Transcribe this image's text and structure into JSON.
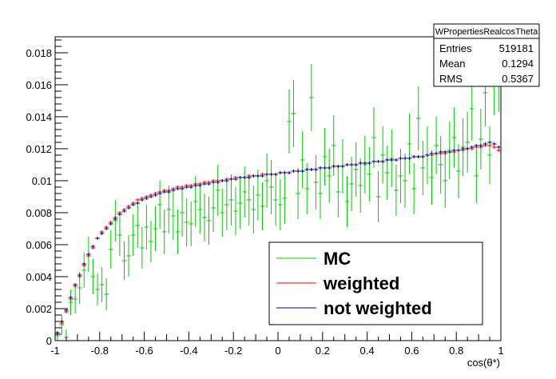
{
  "chart_data": {
    "type": "scatter",
    "title": "",
    "xlabel": "cos(θ*)",
    "ylabel": "",
    "xlim": [
      -1,
      1
    ],
    "ylim": [
      0,
      0.019
    ],
    "grid": false,
    "x_ticks": [
      "-1",
      "-0.8",
      "-0.6",
      "-0.4",
      "-0.2",
      "0",
      "0.2",
      "0.4",
      "0.6",
      "0.8",
      "1"
    ],
    "x_tick_values": [
      -1,
      -0.8,
      -0.6,
      -0.4,
      -0.2,
      0,
      0.2,
      0.4,
      0.6,
      0.8,
      1
    ],
    "y_ticks": [
      "0",
      "0.002",
      "0.004",
      "0.006",
      "0.008",
      "0.01",
      "0.012",
      "0.014",
      "0.016",
      "0.018"
    ],
    "y_tick_values": [
      0,
      0.002,
      0.004,
      0.006,
      0.008,
      0.01,
      0.012,
      0.014,
      0.016,
      0.018
    ],
    "legend_placement": "bottom-right",
    "bins": {
      "n": 100,
      "low": -1,
      "high": 1
    },
    "series": [
      {
        "name": "MC",
        "color": "#00cc00",
        "values": [
          0.0003,
          0.001,
          0.0002,
          0.0024,
          0.0026,
          0.0033,
          0.0044,
          0.0054,
          0.004,
          0.0032,
          0.0035,
          0.0029,
          0.0057,
          0.0075,
          0.0066,
          0.005,
          0.0053,
          0.0066,
          0.0072,
          0.0058,
          0.0071,
          0.0062,
          0.007,
          0.0085,
          0.0068,
          0.0082,
          0.0078,
          0.0068,
          0.008,
          0.0074,
          0.0073,
          0.0087,
          0.0082,
          0.0077,
          0.0075,
          0.0083,
          0.0094,
          0.008,
          0.0085,
          0.0088,
          0.0081,
          0.0086,
          0.0093,
          0.0088,
          0.0082,
          0.0091,
          0.0084,
          0.01,
          0.0096,
          0.0088,
          0.0085,
          0.0089,
          0.0137,
          0.0142,
          0.0092,
          0.0113,
          0.0095,
          0.0152,
          0.0099,
          0.0092,
          0.0115,
          0.0103,
          0.0122,
          0.0093,
          0.0109,
          0.0087,
          0.0098,
          0.0107,
          0.0097,
          0.011,
          0.0104,
          0.0127,
          0.009,
          0.0116,
          0.0105,
          0.0114,
          0.0094,
          0.0103,
          0.01,
          0.0123,
          0.0095,
          0.0139,
          0.0108,
          0.0116,
          0.0102,
          0.0122,
          0.011,
          0.01,
          0.0119,
          0.0127,
          0.0106,
          0.0121,
          0.0124,
          0.0145,
          0.0103,
          0.0126,
          0.0155,
          0.0116,
          0.0162,
          0.0165
        ],
        "errors": [
          0.0003,
          0.0006,
          0.0005,
          0.0008,
          0.0009,
          0.001,
          0.0011,
          0.0011,
          0.0011,
          0.001,
          0.0011,
          0.001,
          0.0012,
          0.0013,
          0.0013,
          0.0012,
          0.0013,
          0.0013,
          0.0014,
          0.0013,
          0.0014,
          0.0013,
          0.0014,
          0.0015,
          0.0014,
          0.0015,
          0.0015,
          0.0014,
          0.0015,
          0.0015,
          0.0014,
          0.0016,
          0.0015,
          0.0015,
          0.0015,
          0.0015,
          0.0016,
          0.0015,
          0.0016,
          0.0016,
          0.0015,
          0.0016,
          0.0016,
          0.0016,
          0.0015,
          0.0016,
          0.0015,
          0.0017,
          0.0017,
          0.0016,
          0.0016,
          0.0016,
          0.002,
          0.0021,
          0.0016,
          0.0018,
          0.0016,
          0.0021,
          0.0017,
          0.0016,
          0.0018,
          0.0017,
          0.0019,
          0.0016,
          0.0017,
          0.0016,
          0.0017,
          0.0017,
          0.0017,
          0.0018,
          0.0017,
          0.0019,
          0.0016,
          0.0018,
          0.0017,
          0.0018,
          0.0016,
          0.0017,
          0.0017,
          0.0019,
          0.0016,
          0.002,
          0.0017,
          0.0018,
          0.0017,
          0.0018,
          0.0018,
          0.0017,
          0.0018,
          0.0019,
          0.0017,
          0.0018,
          0.0019,
          0.002,
          0.0017,
          0.0019,
          0.0021,
          0.0018,
          0.0021,
          0.0022
        ]
      },
      {
        "name": "weighted",
        "color": "#ff0000",
        "values": [
          0.0004,
          0.0011,
          0.0018,
          0.0026,
          0.0034,
          0.004,
          0.0047,
          0.0053,
          0.0058,
          0.0064,
          0.0068,
          0.0071,
          0.0074,
          0.0077,
          0.008,
          0.0082,
          0.0084,
          0.0086,
          0.0088,
          0.0089,
          0.009,
          0.0091,
          0.0092,
          0.0093,
          0.0094,
          0.0094,
          0.0095,
          0.0096,
          0.0096,
          0.0097,
          0.0097,
          0.0098,
          0.0098,
          0.0099,
          0.0099,
          0.01,
          0.01,
          0.01,
          0.0101,
          0.0101,
          0.0102,
          0.0102,
          0.0102,
          0.0103,
          0.0103,
          0.0103,
          0.0104,
          0.0104,
          0.0104,
          0.0104,
          0.0105,
          0.0105,
          0.0105,
          0.0106,
          0.0106,
          0.0106,
          0.0107,
          0.0107,
          0.0107,
          0.0108,
          0.0108,
          0.0108,
          0.0109,
          0.0109,
          0.0109,
          0.011,
          0.011,
          0.011,
          0.0111,
          0.0111,
          0.0111,
          0.0112,
          0.0112,
          0.0112,
          0.0113,
          0.0113,
          0.0113,
          0.0114,
          0.0114,
          0.0114,
          0.0115,
          0.0115,
          0.0115,
          0.0116,
          0.0116,
          0.0117,
          0.0117,
          0.0117,
          0.0118,
          0.0118,
          0.0119,
          0.0119,
          0.012,
          0.012,
          0.0121,
          0.0121,
          0.0122,
          0.0122,
          0.0121,
          0.0119
        ],
        "errors": [
          8e-05,
          0.0001,
          0.0001,
          0.0001,
          0.0001,
          0.0001,
          0.0001,
          0.0001,
          0.0001,
          0.0001,
          0.0001,
          0.0001,
          0.0001,
          0.0001,
          0.0001,
          0.0001,
          0.0001,
          0.0001,
          0.0001,
          0.0001,
          0.0001,
          0.0001,
          0.0001,
          0.0001,
          0.0001,
          0.0001,
          0.0001,
          0.0001,
          0.0001,
          0.0001,
          0.0001,
          0.0001,
          0.0001,
          0.0001,
          0.0001,
          0.0001,
          0.0001,
          0.0001,
          0.0001,
          0.0001,
          0.0001,
          0.0001,
          0.0001,
          0.0001,
          0.0001,
          0.0001,
          0.0001,
          0.0001,
          0.0001,
          0.0001,
          0.0001,
          0.0001,
          0.0001,
          0.0001,
          0.0001,
          0.0001,
          0.0001,
          0.0001,
          0.0001,
          0.0001,
          0.0001,
          0.0001,
          0.0001,
          0.0001,
          0.0001,
          0.0001,
          0.0001,
          0.0001,
          0.0001,
          0.0001,
          0.0001,
          0.0001,
          0.0001,
          0.0001,
          0.0001,
          0.0001,
          0.0001,
          0.0001,
          0.0001,
          0.0001,
          0.0001,
          0.0001,
          0.0001,
          0.0001,
          0.0001,
          0.0001,
          0.0001,
          0.0001,
          0.0001,
          0.0001,
          0.0001,
          0.0001,
          0.0001,
          0.0001,
          0.0001,
          0.0001,
          0.0001,
          0.0001,
          0.0001,
          0.0001
        ]
      },
      {
        "name": "not weighted",
        "color": "#000080",
        "values": [
          0.0005,
          0.0012,
          0.0019,
          0.0027,
          0.0035,
          0.0041,
          0.0048,
          0.0054,
          0.0059,
          0.0064,
          0.0067,
          0.007,
          0.0073,
          0.0076,
          0.0079,
          0.0081,
          0.0083,
          0.0085,
          0.0086,
          0.0088,
          0.0089,
          0.009,
          0.0091,
          0.0092,
          0.0093,
          0.0093,
          0.0094,
          0.0095,
          0.0095,
          0.0096,
          0.0096,
          0.0097,
          0.0097,
          0.0098,
          0.0098,
          0.0099,
          0.0099,
          0.01,
          0.01,
          0.0101,
          0.0101,
          0.0102,
          0.0102,
          0.0102,
          0.0103,
          0.0103,
          0.0103,
          0.0104,
          0.0104,
          0.0104,
          0.0105,
          0.0105,
          0.0105,
          0.0106,
          0.0106,
          0.0106,
          0.0107,
          0.0107,
          0.0107,
          0.0108,
          0.0108,
          0.0108,
          0.0109,
          0.0109,
          0.0109,
          0.011,
          0.011,
          0.011,
          0.0111,
          0.0111,
          0.0111,
          0.0112,
          0.0112,
          0.0112,
          0.0113,
          0.0113,
          0.0113,
          0.0114,
          0.0114,
          0.0114,
          0.0115,
          0.0115,
          0.0115,
          0.0116,
          0.0117,
          0.0117,
          0.0118,
          0.0118,
          0.0118,
          0.0119,
          0.0119,
          0.012,
          0.012,
          0.0121,
          0.0122,
          0.0122,
          0.0123,
          0.0124,
          0.0123,
          0.0121
        ],
        "errors": [
          8e-05,
          0.0001,
          0.0001,
          0.0001,
          0.0001,
          0.0001,
          0.0001,
          0.0001,
          0.0001,
          0.0001,
          0.0001,
          0.0001,
          0.0001,
          0.0001,
          0.0001,
          0.0001,
          0.0001,
          0.0001,
          0.0001,
          0.0001,
          0.0001,
          0.0001,
          0.0001,
          0.0001,
          0.0001,
          0.0001,
          0.0001,
          0.0001,
          0.0001,
          0.0001,
          0.0001,
          0.0001,
          0.0001,
          0.0001,
          0.0001,
          0.0001,
          0.0001,
          0.0001,
          0.0001,
          0.0001,
          0.0001,
          0.0001,
          0.0001,
          0.0001,
          0.0001,
          0.0001,
          0.0001,
          0.0001,
          0.0001,
          0.0001,
          0.0001,
          0.0001,
          0.0001,
          0.0001,
          0.0001,
          0.0001,
          0.0001,
          0.0001,
          0.0001,
          0.0001,
          0.0001,
          0.0001,
          0.0001,
          0.0001,
          0.0001,
          0.0001,
          0.0001,
          0.0001,
          0.0001,
          0.0001,
          0.0001,
          0.0001,
          0.0001,
          0.0001,
          0.0001,
          0.0001,
          0.0001,
          0.0001,
          0.0001,
          0.0001,
          0.0001,
          0.0001,
          0.0001,
          0.0001,
          0.0001,
          0.0001,
          0.0001,
          0.0001,
          0.0001,
          0.0001,
          0.0001,
          0.0001,
          0.0001,
          0.0001,
          0.0001,
          0.0001,
          0.0001,
          0.0001,
          0.0001,
          0.0001
        ]
      }
    ]
  },
  "stats_box": {
    "title": "WPropertiesRealcosTheta",
    "rows": [
      {
        "label": "Entries",
        "value": "519181"
      },
      {
        "label": "Mean",
        "value": "0.1294"
      },
      {
        "label": "RMS",
        "value": "0.5367"
      }
    ]
  }
}
